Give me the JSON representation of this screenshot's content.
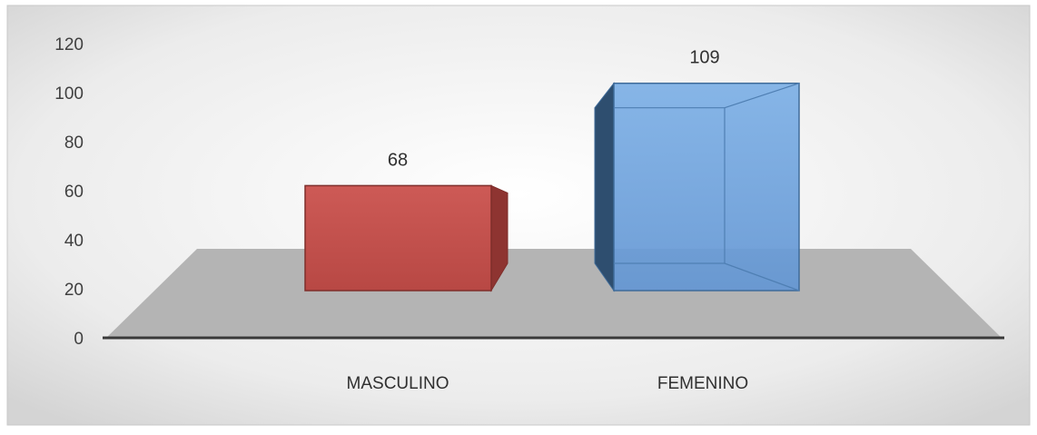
{
  "chart_data": {
    "type": "bar",
    "style": "3d",
    "categories": [
      "MASCULINO",
      "FEMENINO"
    ],
    "values": [
      68,
      109
    ],
    "data_labels": [
      "68",
      "109"
    ],
    "yticks": [
      "0",
      "20",
      "40",
      "60",
      "80",
      "100",
      "120"
    ],
    "ylim": [
      0,
      120
    ],
    "title": "",
    "xlabel": "",
    "ylabel": "",
    "grid": false,
    "legend": "none",
    "colors": [
      "#c0504d",
      "#6fa3de"
    ]
  }
}
